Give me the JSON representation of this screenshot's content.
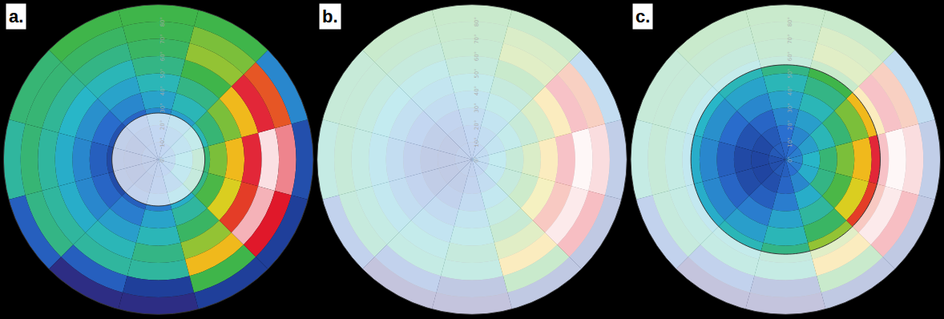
{
  "chart_data": {
    "type": "polar_heatmap",
    "grid": true,
    "r_bins": [
      0,
      10,
      20,
      30,
      40,
      50,
      60,
      70,
      80,
      90
    ],
    "theta": [
      0,
      30,
      60,
      90,
      120,
      150,
      180,
      210,
      240,
      270,
      300,
      330
    ],
    "thetaticks": [
      0,
      90,
      180,
      270
    ],
    "cells": [
      [
        0.3,
        0.28,
        0.25,
        0.22,
        0.2,
        0.18,
        0.15,
        0.15,
        0.18,
        0.2,
        0.25,
        0.28
      ],
      [
        0.4,
        0.35,
        0.3,
        0.25,
        0.18,
        0.13,
        0.12,
        0.12,
        0.15,
        0.22,
        0.3,
        0.38
      ],
      [
        0.5,
        0.42,
        0.35,
        0.3,
        0.22,
        0.16,
        0.13,
        0.14,
        0.2,
        0.28,
        0.38,
        0.48
      ],
      [
        0.6,
        0.5,
        0.42,
        0.36,
        0.3,
        0.24,
        0.2,
        0.22,
        0.28,
        0.36,
        0.45,
        0.56
      ],
      [
        0.72,
        0.6,
        0.48,
        0.42,
        0.36,
        0.32,
        0.3,
        0.3,
        0.35,
        0.42,
        0.52,
        0.68
      ],
      [
        0.86,
        0.72,
        0.55,
        0.48,
        0.42,
        0.4,
        0.38,
        0.38,
        0.42,
        0.48,
        0.62,
        0.82
      ],
      [
        0.98,
        0.86,
        0.62,
        0.52,
        0.48,
        0.46,
        0.45,
        0.45,
        0.45,
        0.45,
        0.72,
        0.95
      ],
      [
        0.92,
        0.8,
        0.6,
        0.54,
        0.52,
        0.5,
        0.5,
        0.48,
        0.2,
        0.1,
        0.55,
        0.85
      ],
      [
        0.15,
        0.3,
        0.55,
        0.55,
        0.55,
        0.5,
        0.45,
        0.2,
        0.05,
        0.05,
        0.1,
        0.1
      ]
    ],
    "clim": [
      0,
      1
    ],
    "rlim": [
      0,
      90
    ],
    "rticks": [
      {
        "value": 0,
        "label": "0°"
      },
      {
        "value": 10,
        "label": "10°"
      },
      {
        "value": 20,
        "label": "20°"
      },
      {
        "value": 30,
        "label": "30°"
      },
      {
        "value": 40,
        "label": "40°"
      },
      {
        "value": 50,
        "label": "50°"
      },
      {
        "value": 60,
        "label": "60°"
      },
      {
        "value": 70,
        "label": "70°"
      },
      {
        "value": 80,
        "label": "80°"
      }
    ],
    "panels": [
      {
        "label": "a.",
        "faded": [
          0,
          27
        ]
      },
      {
        "label": "b.",
        "faded": [
          0,
          90
        ]
      },
      {
        "label": "c.",
        "faded": [
          55,
          90
        ]
      }
    ]
  }
}
